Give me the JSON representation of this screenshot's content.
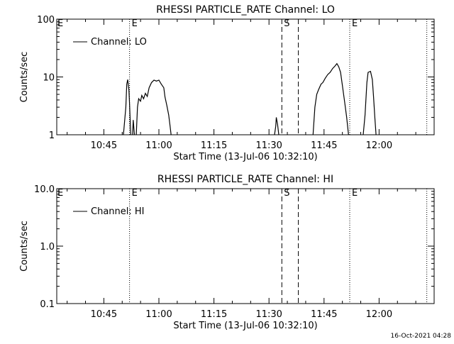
{
  "timestamp": "16-Oct-2021 04:28",
  "chart_data": [
    {
      "type": "line",
      "title": "RHESSI PARTICLE_RATE Channel: LO",
      "xlabel": "Start Time (13-Jul-06 10:32:10)",
      "ylabel": "Counts/sec",
      "y_scale": "log",
      "ylim": [
        1,
        100
      ],
      "y_ticks": [
        1,
        10,
        100
      ],
      "y_tick_labels": [
        "1",
        "10",
        "100"
      ],
      "xlim": [
        "10:32:10",
        "12:15:00"
      ],
      "x_ticks": [
        "10:45",
        "11:00",
        "11:15",
        "11:30",
        "11:45",
        "12:00"
      ],
      "legend": {
        "label": "Channel: LO",
        "placement": "top-left"
      },
      "markers": [
        {
          "time": "10:52:00",
          "style": "dotted",
          "label": "E"
        },
        {
          "time": "11:33:30",
          "style": "dashed",
          "label": "S"
        },
        {
          "time": "11:38:00",
          "style": "dashed",
          "label": ""
        },
        {
          "time": "11:52:00",
          "style": "dotted",
          "label": "E"
        },
        {
          "time": "12:13:00",
          "style": "dotted",
          "label": ""
        }
      ],
      "series": [
        {
          "name": "Channel: LO",
          "segments": [
            [
              [
                "10:50:20",
                1
              ],
              [
                "10:51:00",
                3
              ],
              [
                "10:51:15",
                7.5
              ],
              [
                "10:51:30",
                9
              ],
              [
                "10:51:50",
                6
              ],
              [
                "10:52:00",
                3.5
              ],
              [
                "10:52:10",
                1.8
              ],
              [
                "10:52:20",
                1
              ]
            ],
            [
              [
                "10:52:50",
                1
              ],
              [
                "10:53:00",
                1.8
              ],
              [
                "10:53:20",
                1
              ]
            ],
            [
              [
                "10:53:50",
                1
              ],
              [
                "10:54:10",
                3
              ],
              [
                "10:54:30",
                4.2
              ],
              [
                "10:55:00",
                3.8
              ],
              [
                "10:55:20",
                4.8
              ],
              [
                "10:55:50",
                4.2
              ],
              [
                "10:56:20",
                5.2
              ],
              [
                "10:56:50",
                4.6
              ],
              [
                "10:57:20",
                6.5
              ],
              [
                "10:58:00",
                8
              ],
              [
                "10:58:40",
                8.8
              ],
              [
                "10:59:20",
                8.5
              ],
              [
                "11:00:00",
                8.8
              ],
              [
                "11:00:40",
                7.5
              ],
              [
                "11:01:20",
                6.5
              ],
              [
                "11:01:40",
                4.5
              ],
              [
                "11:02:10",
                3.2
              ],
              [
                "11:02:40",
                2.2
              ],
              [
                "11:03:00",
                1.5
              ],
              [
                "11:03:20",
                1
              ]
            ],
            [
              [
                "11:31:30",
                1
              ],
              [
                "11:31:50",
                1.4
              ],
              [
                "11:32:00",
                2.0
              ],
              [
                "11:32:20",
                1.5
              ],
              [
                "11:32:40",
                1
              ]
            ],
            [
              [
                "11:42:00",
                1
              ],
              [
                "11:42:30",
                3
              ],
              [
                "11:43:00",
                5
              ],
              [
                "11:43:30",
                6
              ],
              [
                "11:44:10",
                7.5
              ],
              [
                "11:44:40",
                8
              ],
              [
                "11:45:20",
                9.5
              ],
              [
                "11:46:00",
                11
              ],
              [
                "11:46:40",
                12
              ],
              [
                "11:47:20",
                14
              ],
              [
                "11:48:00",
                15.5
              ],
              [
                "11:48:30",
                17
              ],
              [
                "11:49:00",
                15
              ],
              [
                "11:49:30",
                12
              ],
              [
                "11:50:10",
                6
              ],
              [
                "11:50:40",
                3.5
              ],
              [
                "11:51:10",
                2
              ],
              [
                "11:51:40",
                1
              ]
            ],
            [
              [
                "11:55:40",
                1
              ],
              [
                "11:56:10",
                2.2
              ],
              [
                "11:56:40",
                8
              ],
              [
                "11:57:00",
                12
              ],
              [
                "11:57:40",
                12.5
              ],
              [
                "11:58:10",
                9
              ],
              [
                "11:58:30",
                4.5
              ],
              [
                "11:58:50",
                2
              ],
              [
                "11:59:10",
                1
              ]
            ]
          ]
        }
      ]
    },
    {
      "type": "line",
      "title": "RHESSI PARTICLE_RATE Channel: HI",
      "xlabel": "Start Time (13-Jul-06 10:32:10)",
      "ylabel": "Counts/sec",
      "y_scale": "log",
      "ylim": [
        0.1,
        10
      ],
      "y_ticks": [
        0.1,
        1,
        10
      ],
      "y_tick_labels": [
        "0.1",
        "1.0",
        "10.0"
      ],
      "xlim": [
        "10:32:10",
        "12:15:00"
      ],
      "x_ticks": [
        "10:45",
        "11:00",
        "11:15",
        "11:30",
        "11:45",
        "12:00"
      ],
      "legend": {
        "label": "Channel: HI",
        "placement": "top-left"
      },
      "markers": [
        {
          "time": "10:52:00",
          "style": "dotted",
          "label": "E"
        },
        {
          "time": "11:33:30",
          "style": "dashed",
          "label": "S"
        },
        {
          "time": "11:38:00",
          "style": "dashed",
          "label": ""
        },
        {
          "time": "11:52:00",
          "style": "dotted",
          "label": "E"
        },
        {
          "time": "12:13:00",
          "style": "dotted",
          "label": ""
        }
      ],
      "series": [
        {
          "name": "Channel: HI",
          "segments": []
        }
      ]
    }
  ]
}
